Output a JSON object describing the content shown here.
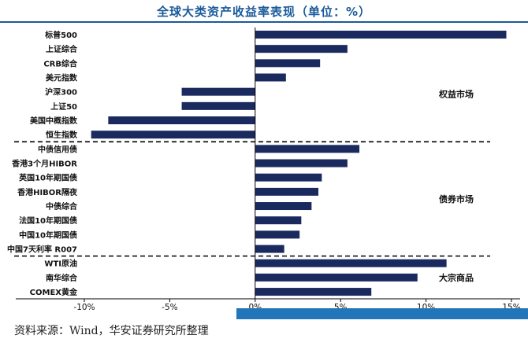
{
  "title": "全球大类资产收益率表现（单位：%）",
  "source": "资料来源：Wind，华安证券研究所整理",
  "colors": {
    "bar": "#1b2a5e",
    "title": "#1a5a9a",
    "accent_bar": "#2175b8"
  },
  "chart_data": {
    "type": "bar",
    "orientation": "horizontal",
    "title": "全球大类资产收益率表现（单位：%）",
    "categories": [
      "标普500",
      "上证综合",
      "CRB综合",
      "美元指数",
      "沪深300",
      "上证50",
      "美国中概指数",
      "恒生指数",
      "中债信用债",
      "香港3个月HIBOR",
      "英国10年期国债",
      "香港HIBOR隔夜",
      "中债综合",
      "法国10年期国债",
      "中国10年期国债",
      "中国7天利率 R007",
      "WTI原油",
      "南华综合",
      "COMEX黄金"
    ],
    "values": [
      14.7,
      5.4,
      3.8,
      1.8,
      -4.3,
      -4.3,
      -8.6,
      -9.6,
      6.1,
      5.4,
      3.9,
      3.7,
      3.3,
      2.7,
      2.6,
      1.7,
      11.2,
      9.5,
      6.8
    ],
    "groups": [
      {
        "label": "权益市场",
        "start": 0,
        "end": 7
      },
      {
        "label": "债券市场",
        "start": 8,
        "end": 15
      },
      {
        "label": "大宗商品",
        "start": 16,
        "end": 18
      }
    ],
    "xlim": [
      -10,
      15
    ],
    "xticks": [
      -10,
      -5,
      0,
      5,
      10,
      15
    ],
    "xtick_labels": [
      "-10%",
      "-5%",
      "0%",
      "5%",
      "10%",
      "15%"
    ],
    "legend": "none",
    "grid": false
  }
}
